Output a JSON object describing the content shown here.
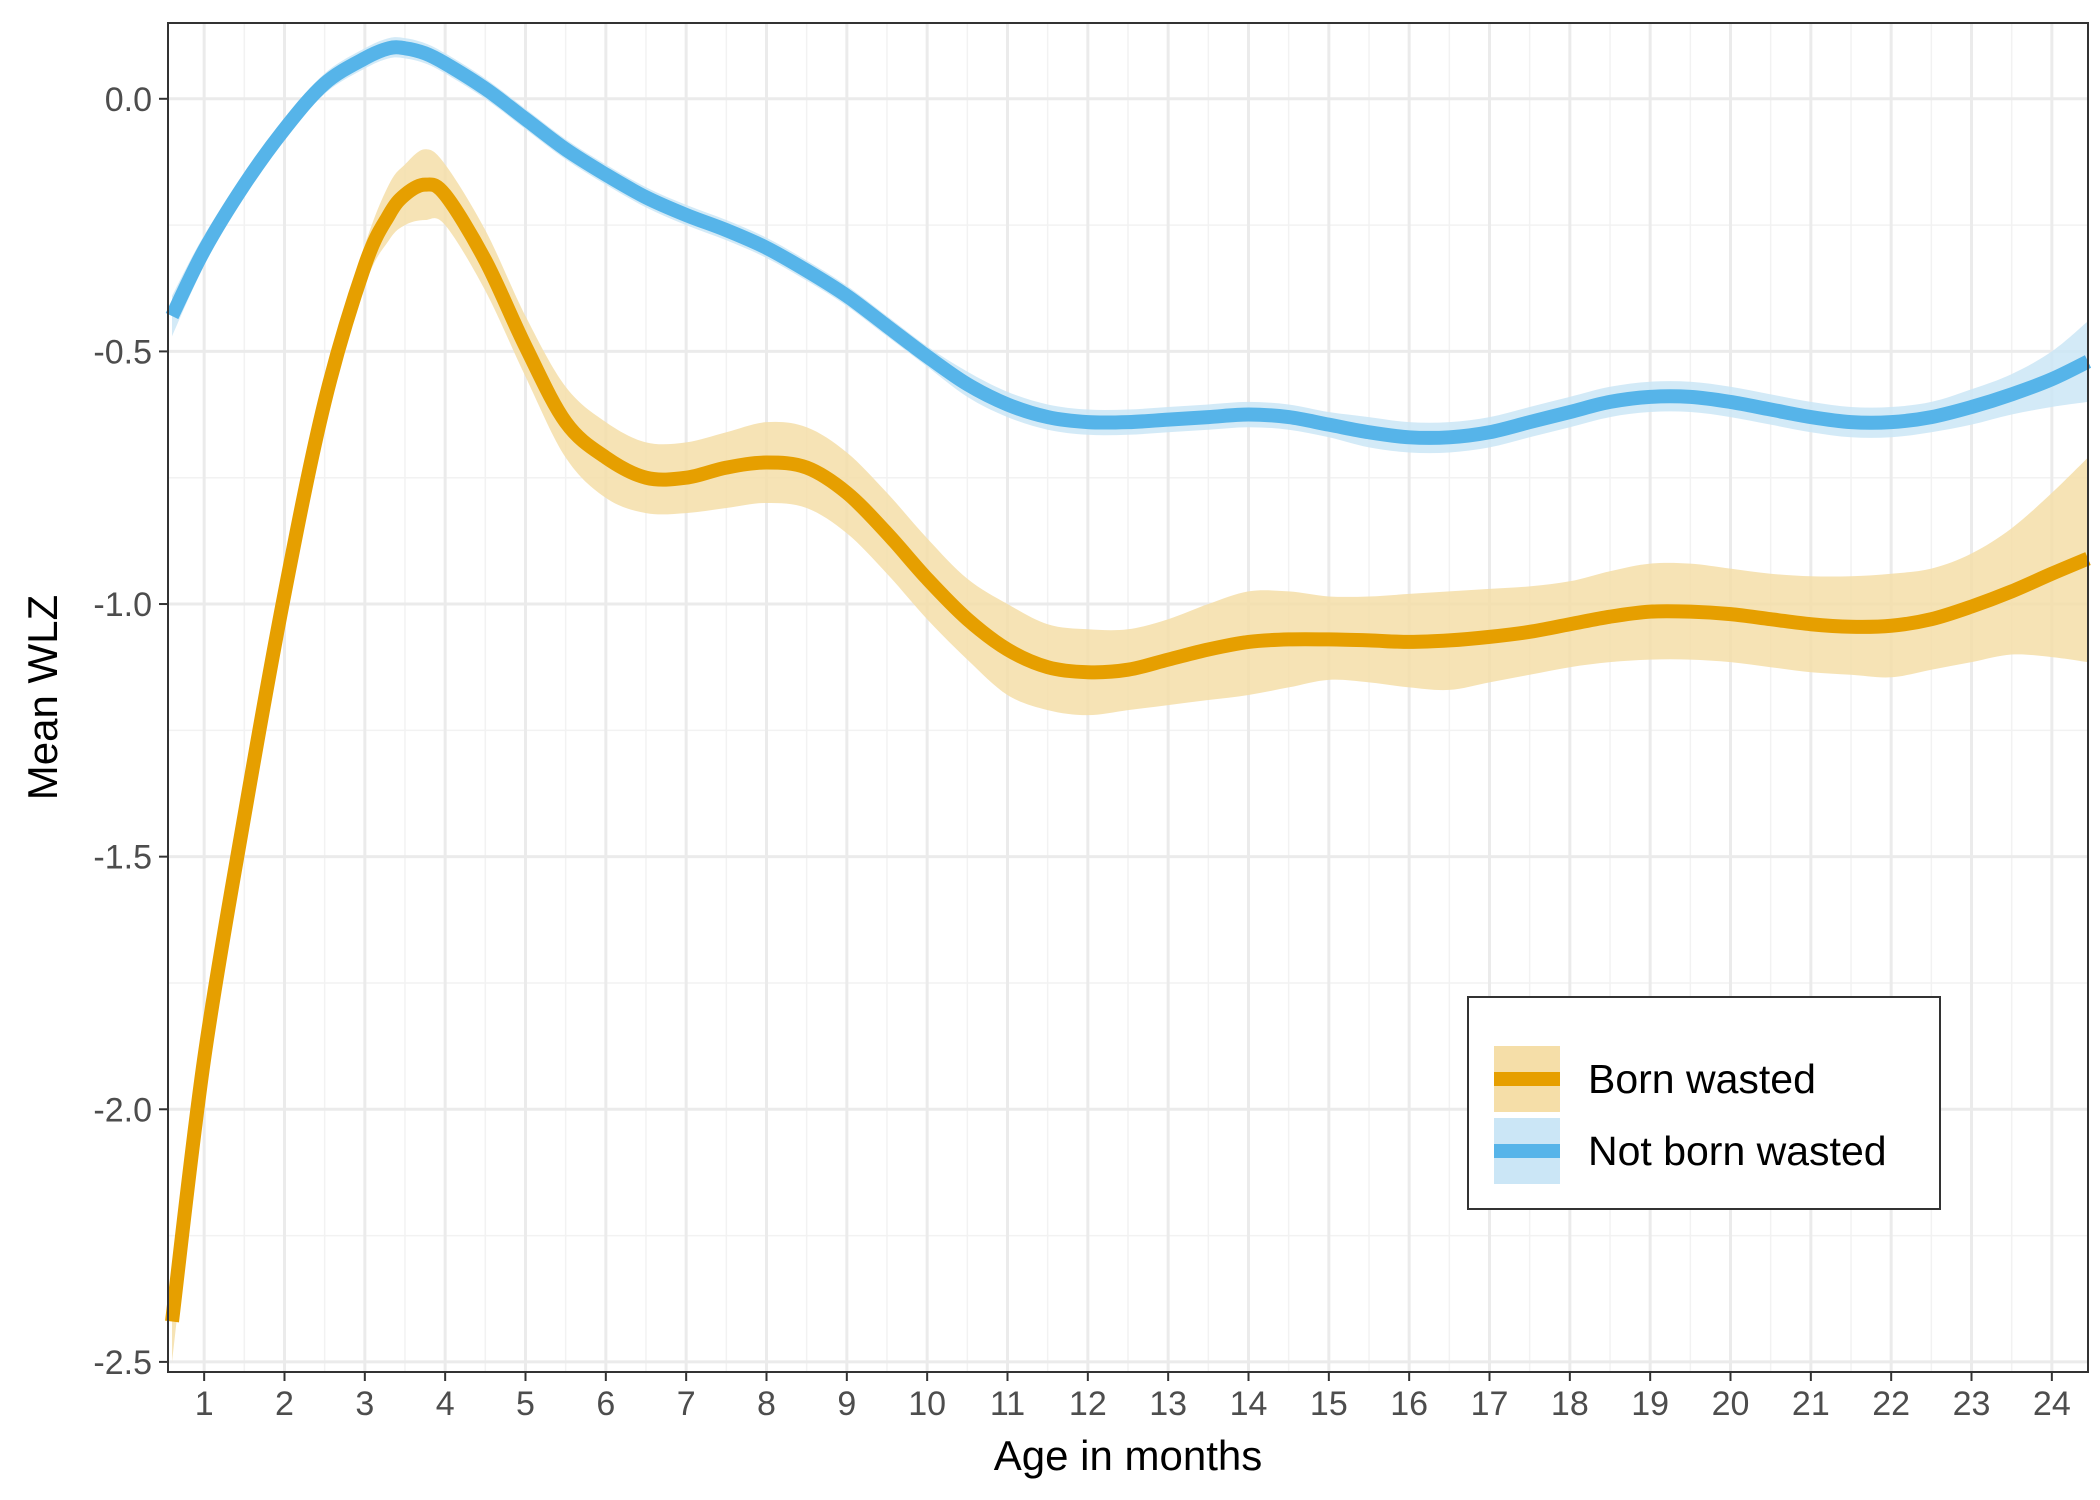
{
  "chart_data": {
    "type": "line",
    "xlabel": "Age in months",
    "ylabel": "Mean WLZ",
    "xlim": [
      0.55,
      24.45
    ],
    "ylim": [
      -2.52,
      0.15
    ],
    "x_ticks": [
      1,
      2,
      3,
      4,
      5,
      6,
      7,
      8,
      9,
      10,
      11,
      12,
      13,
      14,
      15,
      16,
      17,
      18,
      19,
      20,
      21,
      22,
      23,
      24
    ],
    "x_tick_labels": [
      "1",
      "2",
      "3",
      "4",
      "5",
      "6",
      "7",
      "8",
      "9",
      "10",
      "11",
      "12",
      "13",
      "14",
      "15",
      "16",
      "17",
      "18",
      "19",
      "20",
      "21",
      "22",
      "23",
      "24"
    ],
    "y_ticks": [
      0.0,
      -0.5,
      -1.0,
      -1.5,
      -2.0,
      -2.5
    ],
    "y_tick_labels": [
      "0.0",
      "-0.5",
      "-1.0",
      "-1.5",
      "-2.0",
      "-2.5"
    ],
    "grid": true,
    "legend_position": "bottom-right",
    "series": [
      {
        "name": "Born wasted",
        "color": "#E69F00",
        "ribbon_color": "#F5DEA8",
        "x": [
          0.6,
          1.0,
          1.5,
          2.0,
          2.5,
          3.0,
          3.3,
          3.5,
          3.75,
          4.0,
          4.5,
          5.0,
          5.5,
          6.0,
          6.5,
          7.0,
          7.5,
          8.0,
          8.5,
          9.0,
          9.5,
          10.0,
          10.5,
          11.0,
          11.5,
          12.0,
          12.5,
          13.0,
          13.5,
          14.0,
          14.5,
          15.0,
          15.5,
          16.0,
          16.5,
          17.0,
          17.5,
          18.0,
          18.5,
          19.0,
          19.5,
          20.0,
          20.5,
          21.0,
          21.5,
          22.0,
          22.5,
          23.0,
          23.5,
          24.0,
          24.45
        ],
        "y": [
          -2.42,
          -1.9,
          -1.42,
          -0.98,
          -0.6,
          -0.33,
          -0.23,
          -0.19,
          -0.17,
          -0.19,
          -0.32,
          -0.49,
          -0.64,
          -0.71,
          -0.75,
          -0.75,
          -0.73,
          -0.72,
          -0.73,
          -0.78,
          -0.86,
          -0.95,
          -1.03,
          -1.09,
          -1.125,
          -1.135,
          -1.13,
          -1.11,
          -1.09,
          -1.075,
          -1.07,
          -1.07,
          -1.072,
          -1.075,
          -1.072,
          -1.065,
          -1.055,
          -1.04,
          -1.025,
          -1.015,
          -1.015,
          -1.02,
          -1.03,
          -1.04,
          -1.045,
          -1.043,
          -1.03,
          -1.005,
          -0.975,
          -0.94,
          -0.91
        ],
        "lower": [
          -2.5,
          -1.96,
          -1.47,
          -1.03,
          -0.64,
          -0.37,
          -0.28,
          -0.25,
          -0.24,
          -0.25,
          -0.38,
          -0.55,
          -0.71,
          -0.79,
          -0.82,
          -0.82,
          -0.81,
          -0.8,
          -0.81,
          -0.86,
          -0.94,
          -1.03,
          -1.11,
          -1.18,
          -1.21,
          -1.22,
          -1.21,
          -1.2,
          -1.19,
          -1.18,
          -1.165,
          -1.15,
          -1.155,
          -1.165,
          -1.17,
          -1.155,
          -1.14,
          -1.125,
          -1.115,
          -1.11,
          -1.11,
          -1.115,
          -1.125,
          -1.135,
          -1.14,
          -1.145,
          -1.13,
          -1.115,
          -1.1,
          -1.105,
          -1.115
        ],
        "upper": [
          -2.34,
          -1.84,
          -1.37,
          -0.93,
          -0.56,
          -0.29,
          -0.17,
          -0.13,
          -0.1,
          -0.13,
          -0.26,
          -0.43,
          -0.57,
          -0.64,
          -0.68,
          -0.68,
          -0.66,
          -0.64,
          -0.65,
          -0.7,
          -0.78,
          -0.87,
          -0.95,
          -1.0,
          -1.04,
          -1.05,
          -1.05,
          -1.03,
          -1.0,
          -0.975,
          -0.975,
          -0.985,
          -0.985,
          -0.98,
          -0.975,
          -0.97,
          -0.965,
          -0.955,
          -0.935,
          -0.92,
          -0.92,
          -0.93,
          -0.94,
          -0.945,
          -0.945,
          -0.94,
          -0.93,
          -0.9,
          -0.85,
          -0.78,
          -0.71
        ]
      },
      {
        "name": "Not born wasted",
        "color": "#56B4E9",
        "ribbon_color": "#CBE6F6",
        "x": [
          0.6,
          1.0,
          1.5,
          2.0,
          2.5,
          3.0,
          3.3,
          3.5,
          3.75,
          4.0,
          4.5,
          5.0,
          5.5,
          6.0,
          6.5,
          7.0,
          7.5,
          8.0,
          8.5,
          9.0,
          9.5,
          10.0,
          10.5,
          11.0,
          11.5,
          12.0,
          12.5,
          13.0,
          13.5,
          14.0,
          14.5,
          15.0,
          15.5,
          16.0,
          16.5,
          17.0,
          17.5,
          18.0,
          18.5,
          19.0,
          19.5,
          20.0,
          20.5,
          21.0,
          21.5,
          22.0,
          22.5,
          23.0,
          23.5,
          24.0,
          24.45
        ],
        "y": [
          -0.43,
          -0.3,
          -0.17,
          -0.06,
          0.03,
          0.08,
          0.1,
          0.1,
          0.09,
          0.07,
          0.02,
          -0.04,
          -0.1,
          -0.15,
          -0.195,
          -0.23,
          -0.26,
          -0.295,
          -0.34,
          -0.39,
          -0.45,
          -0.51,
          -0.565,
          -0.605,
          -0.63,
          -0.64,
          -0.64,
          -0.635,
          -0.63,
          -0.625,
          -0.63,
          -0.645,
          -0.66,
          -0.67,
          -0.67,
          -0.66,
          -0.64,
          -0.62,
          -0.6,
          -0.59,
          -0.59,
          -0.6,
          -0.615,
          -0.63,
          -0.64,
          -0.64,
          -0.63,
          -0.61,
          -0.585,
          -0.555,
          -0.52
        ],
        "lower": [
          -0.47,
          -0.33,
          -0.19,
          -0.08,
          0.01,
          0.06,
          0.08,
          0.08,
          0.07,
          0.05,
          0.0,
          -0.06,
          -0.12,
          -0.17,
          -0.215,
          -0.25,
          -0.28,
          -0.315,
          -0.36,
          -0.41,
          -0.47,
          -0.53,
          -0.59,
          -0.63,
          -0.655,
          -0.665,
          -0.665,
          -0.66,
          -0.655,
          -0.65,
          -0.655,
          -0.67,
          -0.69,
          -0.7,
          -0.7,
          -0.69,
          -0.67,
          -0.65,
          -0.63,
          -0.62,
          -0.62,
          -0.63,
          -0.645,
          -0.66,
          -0.67,
          -0.67,
          -0.66,
          -0.645,
          -0.625,
          -0.61,
          -0.6
        ],
        "upper": [
          -0.39,
          -0.27,
          -0.15,
          -0.04,
          0.05,
          0.1,
          0.12,
          0.12,
          0.11,
          0.09,
          0.04,
          -0.02,
          -0.08,
          -0.13,
          -0.175,
          -0.21,
          -0.24,
          -0.275,
          -0.32,
          -0.37,
          -0.43,
          -0.49,
          -0.54,
          -0.58,
          -0.605,
          -0.615,
          -0.615,
          -0.61,
          -0.605,
          -0.6,
          -0.605,
          -0.62,
          -0.63,
          -0.64,
          -0.64,
          -0.63,
          -0.61,
          -0.59,
          -0.57,
          -0.56,
          -0.56,
          -0.57,
          -0.585,
          -0.6,
          -0.61,
          -0.61,
          -0.6,
          -0.575,
          -0.545,
          -0.5,
          -0.44
        ]
      }
    ]
  }
}
